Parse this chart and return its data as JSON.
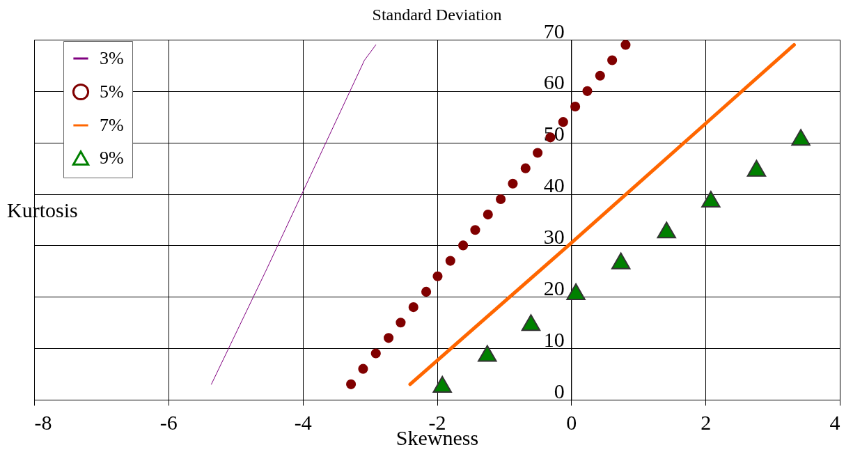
{
  "chart_data": {
    "type": "scatter",
    "title": "Standard Deviation",
    "xlabel": "Skewness",
    "ylabel": "Kurtosis",
    "xlim": [
      -8,
      4
    ],
    "xticks": [
      -8,
      -6,
      -4,
      -2,
      0,
      2,
      4
    ],
    "ylim": [
      0,
      70
    ],
    "yticks": [
      0,
      10,
      20,
      30,
      40,
      50,
      60,
      70
    ],
    "grid": true,
    "legend": "top left",
    "series": [
      {
        "name": "3%",
        "type": "line",
        "marker": "none",
        "color": "#800080",
        "x": [
          -5.36,
          -4.55,
          -3.08,
          -2.91
        ],
        "values": [
          3,
          25,
          66,
          69
        ]
      },
      {
        "name": "5%",
        "marker": "circle",
        "color": "#800000",
        "x": [
          -3.28,
          -3.1,
          -2.91,
          -2.72,
          -2.54,
          -2.35,
          -2.16,
          -1.99,
          -1.8,
          -1.61,
          -1.43,
          -1.24,
          -1.05,
          -0.87,
          -0.68,
          -0.5,
          -0.31,
          -0.12,
          0.06,
          0.24,
          0.43,
          0.61,
          0.81
        ],
        "values": [
          3,
          6,
          9,
          12,
          15,
          18,
          21,
          24,
          27,
          30,
          33,
          36,
          39,
          42,
          45,
          48,
          51,
          54,
          57,
          60,
          63,
          66,
          69
        ]
      },
      {
        "name": "7%",
        "type": "line",
        "marker": "none",
        "color": "#ff6600",
        "x": [
          -2.4,
          -0.04,
          3.32
        ],
        "values": [
          3,
          30,
          69
        ]
      },
      {
        "name": "9%",
        "marker": "triangle",
        "color": "#008000",
        "x": [
          -1.92,
          -1.25,
          -0.6,
          0.07,
          0.74,
          1.42,
          2.08,
          2.76,
          3.42
        ],
        "values": [
          3,
          9,
          15,
          21,
          27,
          33,
          39,
          45,
          51
        ]
      }
    ]
  }
}
